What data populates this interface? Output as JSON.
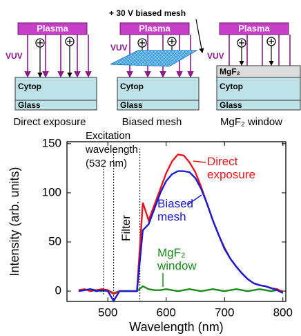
{
  "diagram": {
    "mesh_label": "+ 30 V biased mesh",
    "panels": [
      {
        "plasma": "Plasma",
        "vuv": "VUV",
        "layers": [
          "Cytop",
          "Glass"
        ],
        "caption": "Direct exposure"
      },
      {
        "plasma": "Plasma",
        "vuv": "VUV",
        "layers": [
          "Cytop",
          "Glass"
        ],
        "caption": "Biased mesh"
      },
      {
        "plasma": "Plasma",
        "vuv": "VUV",
        "layers": [
          "MgF₂",
          "Cytop",
          "Glass"
        ],
        "caption": "MgF₂ window"
      }
    ]
  },
  "chart_data": {
    "type": "line",
    "x_label": "Wavelength (nm)",
    "y_label": "Intensity (arb. units)",
    "excitation_label": "Excitation wavelength (532 nm)",
    "filter_label": "Filter",
    "filter_edges": [
      510,
      555
    ],
    "x": [
      450,
      460,
      470,
      480,
      490,
      500,
      510,
      520,
      530,
      540,
      550,
      560,
      570,
      580,
      590,
      600,
      610,
      620,
      630,
      640,
      650,
      660,
      670,
      680,
      690,
      700,
      710,
      720,
      730,
      740,
      750,
      760,
      770,
      780,
      790,
      800
    ],
    "series": [
      {
        "name": "Direct exposure",
        "color": "#e8141b",
        "values": [
          1,
          2,
          0,
          1,
          2,
          1,
          -3,
          0,
          0,
          0,
          0,
          90,
          72,
          88,
          104,
          120,
          132,
          139,
          138,
          131,
          121,
          106,
          89,
          72,
          57,
          44,
          33,
          25,
          18,
          12,
          8,
          6,
          5,
          3,
          2,
          -1
        ]
      },
      {
        "name": "Biased mesh",
        "color": "#1a1acc",
        "values": [
          0,
          1,
          2,
          0,
          1,
          0,
          -10,
          0,
          0,
          0,
          0,
          62,
          68,
          84,
          100,
          112,
          119,
          122,
          122,
          121,
          115,
          104,
          89,
          72,
          57,
          43,
          33,
          25,
          18,
          12,
          8,
          6,
          5,
          3,
          1,
          -2
        ]
      },
      {
        "name": "MgF₂ window",
        "color": "#1a8a1a",
        "values": [
          0,
          1,
          2,
          1,
          0,
          1,
          -2,
          0,
          0,
          0,
          0,
          5,
          2,
          1,
          1,
          2,
          1,
          0,
          1,
          2,
          1,
          0,
          1,
          2,
          1,
          0,
          1,
          2,
          1,
          0,
          1,
          2,
          1,
          0,
          1,
          0
        ]
      }
    ],
    "xlim": [
      430,
      805
    ],
    "xticks": [
      500,
      600,
      700,
      800
    ],
    "ylim": [
      -10.5,
      152
    ],
    "yticks": [
      0,
      50,
      100,
      150
    ]
  }
}
